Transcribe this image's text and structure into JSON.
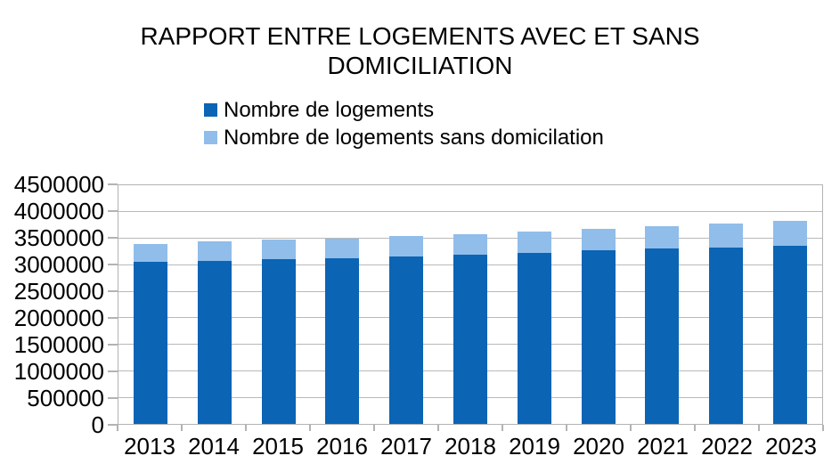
{
  "colors": {
    "series_dark_blue": "#0b64b4",
    "series_light_blue": "#90bdea",
    "gridline_gray": "#b9b9b9",
    "axis_gray": "#b3b3b3",
    "text_black": "#000000",
    "background": "#ffffff"
  },
  "chart_data": {
    "type": "bar",
    "stacked": true,
    "title": "RAPPORT ENTRE LOGEMENTS AVEC ET SANS DOMICILIATION",
    "categories": [
      "2013",
      "2014",
      "2015",
      "2016",
      "2017",
      "2018",
      "2019",
      "2020",
      "2021",
      "2022",
      "2023"
    ],
    "series": [
      {
        "name": "Nombre de logements",
        "color": "#0b64b4",
        "values": [
          3050000,
          3080000,
          3100000,
          3130000,
          3160000,
          3190000,
          3230000,
          3270000,
          3300000,
          3330000,
          3360000
        ]
      },
      {
        "name": "Nombre de logements sans domicilation",
        "color": "#90bdea",
        "values": [
          350000,
          360000,
          370000,
          370000,
          380000,
          390000,
          400000,
          410000,
          430000,
          450000,
          470000
        ]
      }
    ],
    "totals": [
      3400000,
      3440000,
      3470000,
      3500000,
      3540000,
      3580000,
      3630000,
      3680000,
      3730000,
      3780000,
      3830000
    ],
    "xlabel": "",
    "ylabel": "",
    "ylim": [
      0,
      4500000
    ],
    "ytick_step": 500000,
    "ytick_labels": [
      "4500000",
      "4000000",
      "3500000",
      "3000000",
      "2500000",
      "2000000",
      "1500000",
      "1000000",
      "500000",
      "0"
    ],
    "grid": true,
    "legend_position": "top-left"
  }
}
